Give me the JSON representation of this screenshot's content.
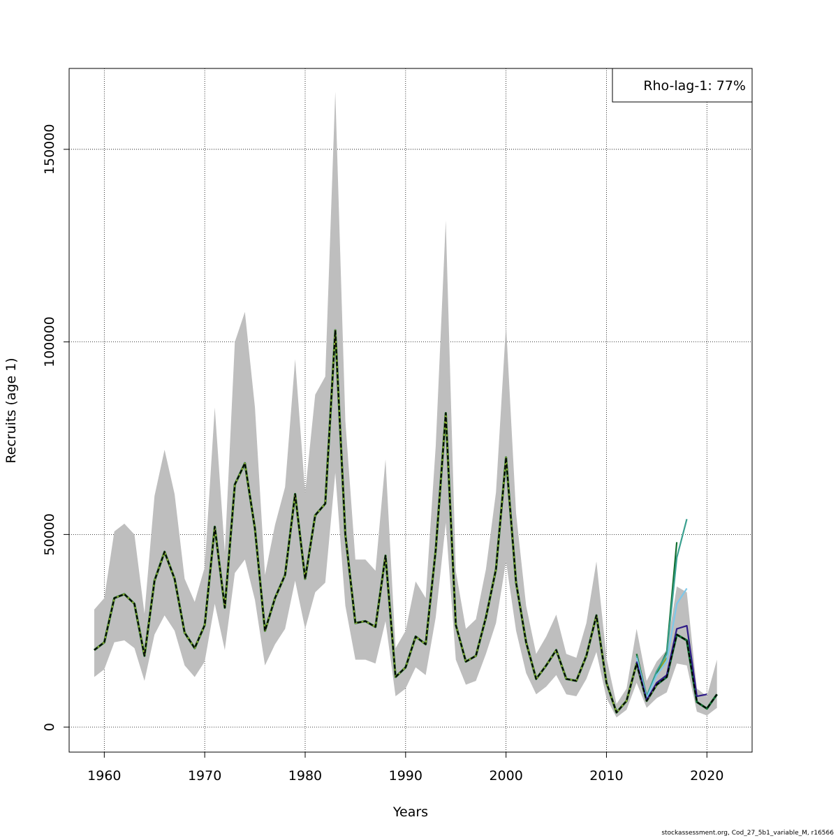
{
  "chart_data": {
    "type": "line",
    "title": "",
    "xlabel": "Years",
    "ylabel": "Recruits (age 1)",
    "xlim": [
      1956.5,
      2024.5
    ],
    "ylim": [
      -6500,
      171000
    ],
    "xticks": [
      1960,
      1970,
      1980,
      1990,
      2000,
      2010,
      2020
    ],
    "yticks": [
      0,
      50000,
      100000,
      150000
    ],
    "ytick_labels": [
      "0",
      "50000",
      "100000",
      "150000"
    ],
    "grid": true,
    "legend": {
      "text": "Rho-lag-1: 77%",
      "position": "top-right"
    },
    "colors": {
      "ci_band": "#bebebe",
      "final_estimate": "#000000",
      "retro_1": "#2e1a87",
      "retro_2": "#7ec8ea",
      "retro_3": "#3aa08f",
      "retro_4": "#106e2f",
      "retro_5": "#8aa832"
    },
    "confidence_interval": {
      "x": [
        1959,
        1960,
        1961,
        1962,
        1963,
        1964,
        1965,
        1966,
        1967,
        1968,
        1969,
        1970,
        1971,
        1972,
        1973,
        1974,
        1975,
        1976,
        1977,
        1978,
        1979,
        1980,
        1981,
        1982,
        1983,
        1984,
        1985,
        1986,
        1987,
        1988,
        1989,
        1990,
        1991,
        1992,
        1993,
        1994,
        1995,
        1996,
        1997,
        1998,
        1999,
        2000,
        2001,
        2002,
        2003,
        2004,
        2005,
        2006,
        2007,
        2008,
        2009,
        2010,
        2011,
        2012,
        2013,
        2014,
        2015,
        2016,
        2017,
        2018,
        2019,
        2020,
        2021
      ],
      "lower": [
        13000,
        15000,
        22000,
        22500,
        20500,
        12000,
        24000,
        29000,
        25000,
        16000,
        13000,
        17000,
        32000,
        20000,
        40000,
        43500,
        33000,
        16000,
        21500,
        25500,
        38000,
        25500,
        35000,
        37500,
        66000,
        31500,
        17500,
        17500,
        16500,
        27500,
        8000,
        10000,
        15500,
        13500,
        28500,
        53000,
        17500,
        11000,
        12000,
        19000,
        27000,
        43000,
        25000,
        14000,
        8500,
        10500,
        13500,
        8500,
        8000,
        12500,
        19500,
        7500,
        2500,
        4500,
        11500,
        5000,
        7500,
        9000,
        16500,
        16000,
        4000,
        3000,
        5000
      ],
      "upper": [
        30500,
        33500,
        50800,
        52800,
        50000,
        29500,
        60000,
        72000,
        60500,
        38500,
        32500,
        41500,
        83000,
        45500,
        100000,
        107800,
        83000,
        39500,
        52500,
        62300,
        95500,
        60800,
        86300,
        91000,
        165000,
        79500,
        43500,
        43500,
        40600,
        69500,
        20500,
        25000,
        37800,
        33500,
        73000,
        131500,
        40500,
        25500,
        28000,
        41000,
        61000,
        104500,
        55500,
        31500,
        19000,
        23500,
        29200,
        19000,
        18000,
        27000,
        43000,
        18000,
        6000,
        10000,
        25500,
        12000,
        17000,
        20000,
        36500,
        35000,
        10000,
        8000,
        17500
      ]
    },
    "series": [
      {
        "name": "final estimate (dashed)",
        "color_key": "final_estimate",
        "x": [
          1959,
          1960,
          1961,
          1962,
          1963,
          1964,
          1965,
          1966,
          1967,
          1968,
          1969,
          1970,
          1971,
          1972,
          1973,
          1974,
          1975,
          1976,
          1977,
          1978,
          1979,
          1980,
          1981,
          1982,
          1983,
          1984,
          1985,
          1986,
          1987,
          1988,
          1989,
          1990,
          1991,
          1992,
          1993,
          1994,
          1995,
          1996,
          1997,
          1998,
          1999,
          2000,
          2001,
          2002,
          2003,
          2004,
          2005,
          2006,
          2007,
          2008,
          2009,
          2010,
          2011,
          2012,
          2013,
          2014,
          2015,
          2016,
          2017,
          2018,
          2019,
          2020,
          2021
        ],
        "values": [
          20000,
          22000,
          33500,
          34500,
          32000,
          18500,
          38000,
          45500,
          38500,
          24500,
          20500,
          26500,
          52000,
          31000,
          63000,
          68500,
          51500,
          25000,
          33500,
          39500,
          60500,
          38500,
          55000,
          58000,
          103000,
          50000,
          27000,
          27500,
          26000,
          44500,
          13000,
          15500,
          23500,
          21500,
          46000,
          81500,
          26500,
          17000,
          18500,
          28500,
          41000,
          70000,
          37500,
          22000,
          12500,
          16000,
          20000,
          12500,
          12000,
          18500,
          29000,
          11500,
          3800,
          6800,
          16500,
          6800,
          11000,
          13000,
          24000,
          22500,
          6500,
          4800,
          8500
        ]
      },
      {
        "name": "retro peel 1",
        "color_key": "retro_1",
        "x": [
          2013,
          2014,
          2015,
          2016,
          2017,
          2018,
          2019,
          2020
        ],
        "values": [
          17000,
          7000,
          11500,
          13500,
          25500,
          26300,
          8000,
          8500
        ]
      },
      {
        "name": "retro peel 2",
        "color_key": "retro_2",
        "x": [
          2013,
          2014,
          2015,
          2016,
          2017,
          2018
        ],
        "values": [
          18000,
          7500,
          13500,
          17000,
          32000,
          36000
        ]
      },
      {
        "name": "retro peel 3",
        "color_key": "retro_3",
        "x": [
          2013,
          2014,
          2015,
          2016,
          2017,
          2018
        ],
        "values": [
          18500,
          8000,
          14500,
          19000,
          44000,
          54000
        ]
      },
      {
        "name": "retro peel 4",
        "color_key": "retro_4",
        "x": [
          2013,
          2014,
          2015,
          2016,
          2017
        ],
        "values": [
          19000,
          8000,
          14000,
          19500,
          48000
        ]
      },
      {
        "name": "retro peel 5",
        "color_key": "retro_5",
        "x": [
          2013,
          2014,
          2015,
          2016
        ],
        "values": [
          19000,
          8000,
          14000,
          18000
        ]
      }
    ]
  },
  "footer": "stockassessment.org, Cod_27_5b1_variable_M, r16566"
}
